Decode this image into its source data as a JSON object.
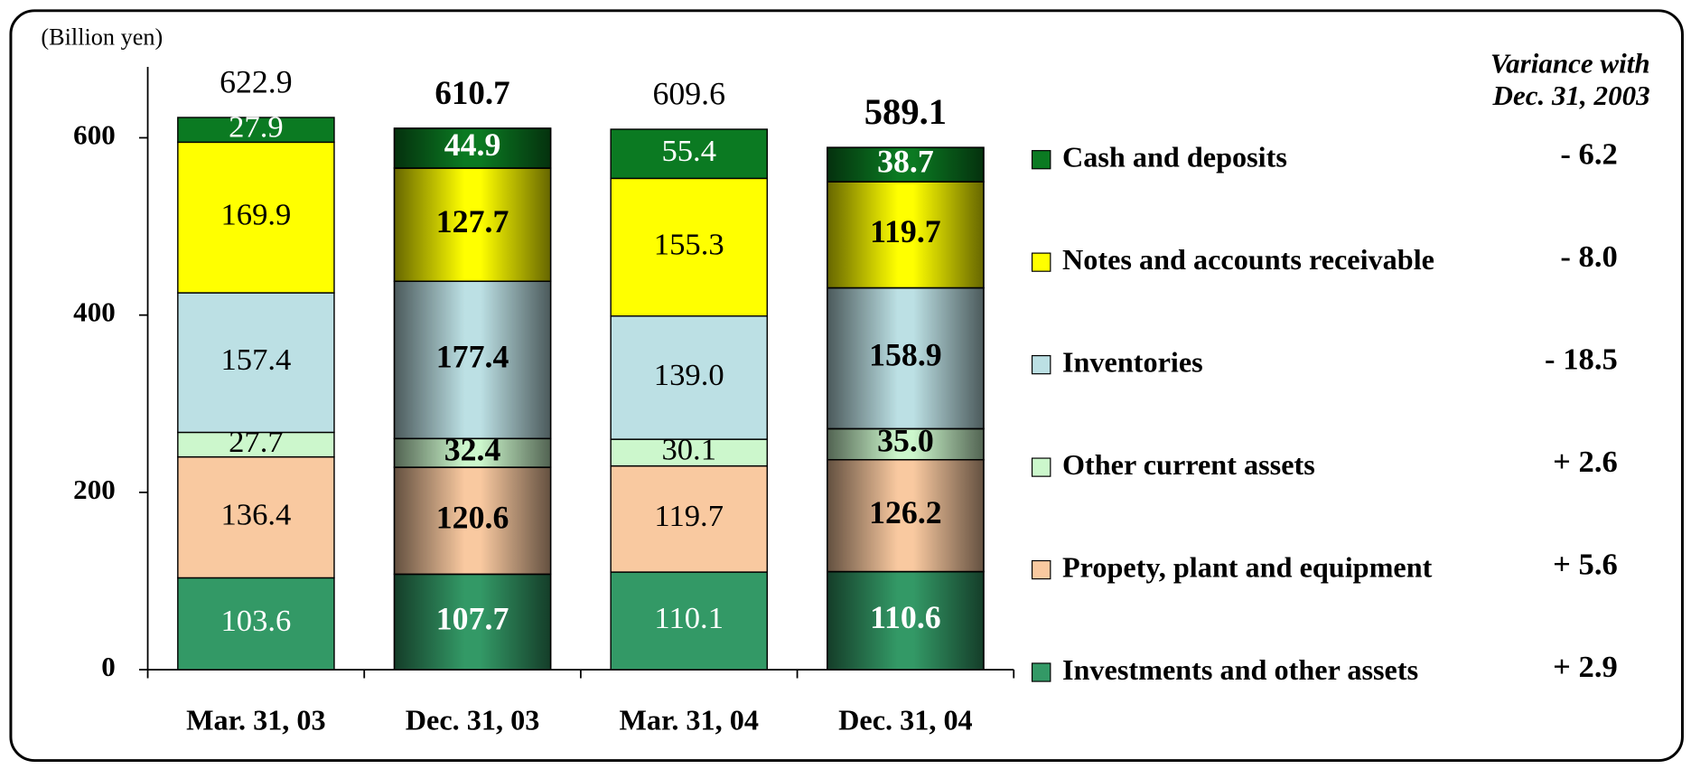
{
  "chart_data": {
    "type": "stacked_bar",
    "y_label": "(Billion yen)",
    "categories": [
      "Mar. 31, 03",
      "Dec. 31, 03",
      "Mar. 31, 04",
      "Dec. 31, 04"
    ],
    "series": [
      {
        "name": "Investments and other assets",
        "color": "#339966",
        "values": [
          103.6,
          107.7,
          110.1,
          110.6
        ],
        "variance": "+ 2.9"
      },
      {
        "name": "Propety, plant and equipment",
        "color": "#f9c9a0",
        "values": [
          136.4,
          120.6,
          119.7,
          126.2
        ],
        "variance": "+ 5.6"
      },
      {
        "name": "Other current assets",
        "color": "#ccf7cc",
        "values": [
          27.7,
          32.4,
          30.1,
          35.0
        ],
        "value_labels": [
          "27.7",
          "32.4",
          "30.1",
          "35.0"
        ],
        "variance": "+ 2.6"
      },
      {
        "name": "Inventories",
        "color": "#bce0e4",
        "values": [
          157.4,
          177.4,
          139.0,
          158.9
        ],
        "value_labels": [
          "157.4",
          "177.4",
          "139.0",
          "158.9"
        ],
        "variance": "- 18.5"
      },
      {
        "name": "Notes and accounts receivable",
        "color": "#ffff00",
        "values": [
          169.9,
          127.7,
          155.3,
          119.7
        ],
        "variance": "- 8.0"
      },
      {
        "name": "Cash and deposits",
        "color": "#0b7a22",
        "values": [
          27.9,
          44.9,
          55.4,
          38.7
        ],
        "variance": "- 6.2"
      }
    ],
    "totals": [
      622.9,
      610.7,
      609.6,
      589.1
    ],
    "variance_title": [
      "Variance with",
      "Dec. 31, 2003"
    ],
    "ylim": [
      0,
      680
    ],
    "yticks": [
      0,
      200,
      400,
      600
    ]
  }
}
